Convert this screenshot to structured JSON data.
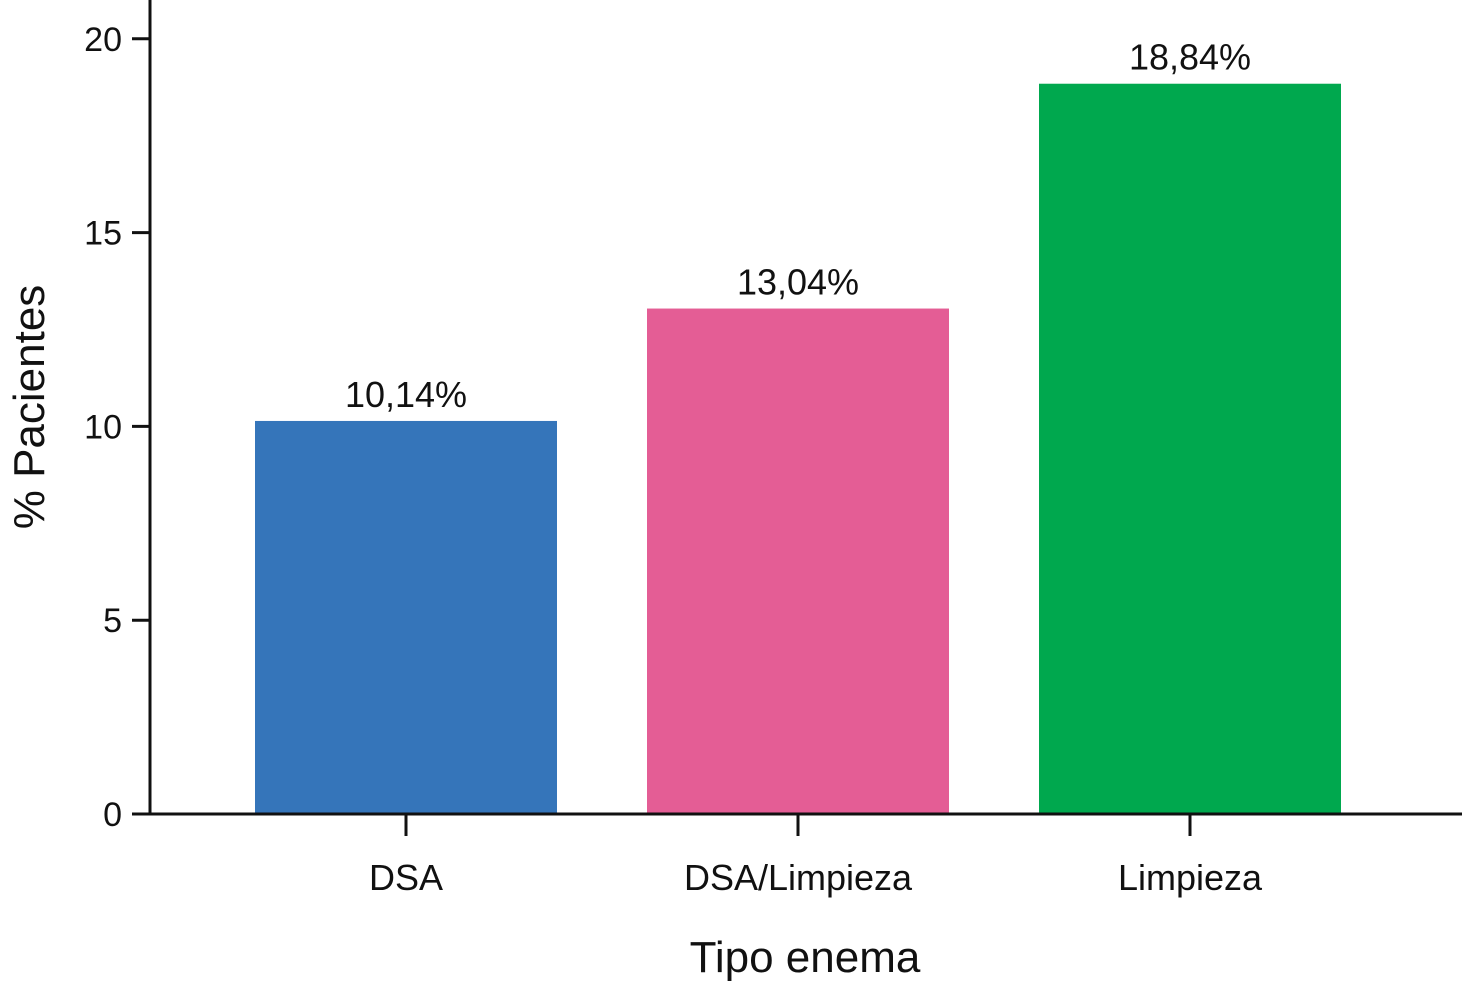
{
  "chart_data": {
    "type": "bar",
    "title": "",
    "xlabel": "Tipo enema",
    "ylabel": "% Pacientes",
    "categories": [
      "DSA",
      "DSA/Limpieza",
      "Limpieza"
    ],
    "values": [
      10.14,
      13.04,
      18.84
    ],
    "data_labels": [
      "10,14%",
      "13,04%",
      "18,84%"
    ],
    "colors": [
      "#3575ba",
      "#e45d95",
      "#00a84e"
    ],
    "ylim": [
      0,
      21
    ],
    "yticks": [
      0,
      5,
      10,
      15,
      20
    ],
    "ytick_labels": [
      "0",
      "5",
      "10",
      "15",
      "20"
    ],
    "grid": false,
    "legend": "none"
  }
}
